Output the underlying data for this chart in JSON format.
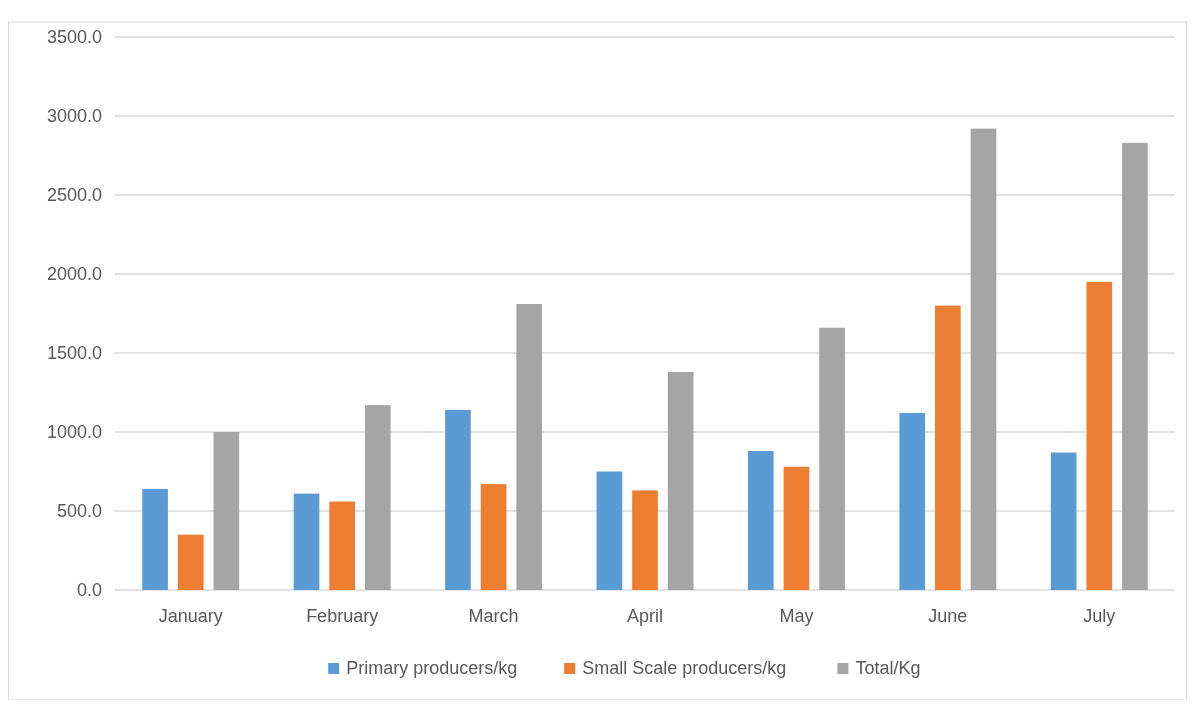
{
  "chart_data": {
    "type": "bar",
    "categories": [
      "January",
      "February",
      "March",
      "April",
      "May",
      "June",
      "July"
    ],
    "series": [
      {
        "name": "Primary producers/kg",
        "color": "#5b9bd5",
        "values": [
          640,
          610,
          1140,
          750,
          880,
          1120,
          870
        ]
      },
      {
        "name": "Small Scale producers/kg",
        "color": "#ed7d31",
        "values": [
          350,
          560,
          670,
          630,
          780,
          1800,
          1950
        ]
      },
      {
        "name": "Total/Kg",
        "color": "#a5a5a5",
        "values": [
          1000,
          1170,
          1810,
          1380,
          1660,
          2920,
          2830
        ]
      }
    ],
    "ylim": [
      0,
      3500
    ],
    "yticks": [
      {
        "value": 0,
        "label": "0.0"
      },
      {
        "value": 500,
        "label": "500.0"
      },
      {
        "value": 1000,
        "label": "1000.0"
      },
      {
        "value": 1500,
        "label": "1500.0"
      },
      {
        "value": 2000,
        "label": "2000.0"
      },
      {
        "value": 2500,
        "label": "2500.0"
      },
      {
        "value": 3000,
        "label": "3000.0"
      },
      {
        "value": 3500,
        "label": "3500.0"
      }
    ],
    "grid": "y",
    "legend": "bottom"
  }
}
